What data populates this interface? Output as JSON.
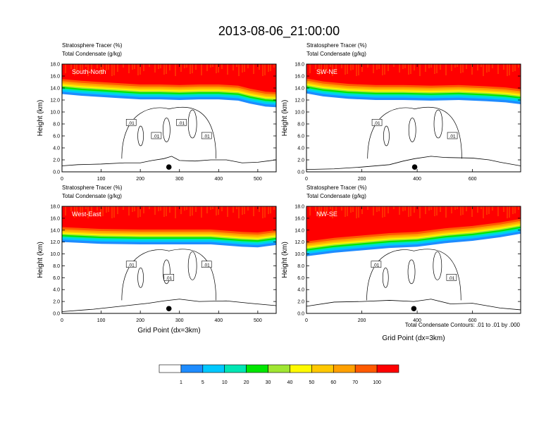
{
  "title": "2013-08-06_21:00:00",
  "footnote": "Total Condensate Contours: .01 to .01 by .000",
  "colorbar": {
    "colors": [
      "#ffffff",
      "#1e8cff",
      "#00c8ff",
      "#00e6b4",
      "#00e600",
      "#a0e632",
      "#fffa00",
      "#ffc800",
      "#ffa000",
      "#ff5a00",
      "#ff0000"
    ],
    "labels": [
      "1",
      "5",
      "10",
      "20",
      "30",
      "40",
      "50",
      "60",
      "70",
      "100"
    ]
  },
  "panels": [
    {
      "label": "South-North",
      "subtitle1": "Stratosphere Tracer   (%)",
      "subtitle2": "Total Condensate   (g/kg)",
      "ylabel": "Height (km)",
      "xlabel": "",
      "xmax": 547,
      "yticks": [
        "0.0",
        "2.0",
        "4.0",
        "6.0",
        "8.0",
        "10.0",
        "12.0",
        "14.0",
        "16.0",
        "18.0"
      ],
      "xticks": [
        "0",
        "100",
        "200",
        "300",
        "400",
        "500"
      ],
      "xtick_values": [
        0,
        100,
        200,
        300,
        400,
        500
      ],
      "marker_x": 273,
      "contour_labels": [
        ".01",
        ".01",
        ".01",
        ".01"
      ],
      "tropopause": [
        [
          0,
          14.4
        ],
        [
          50,
          14.1
        ],
        [
          100,
          13.9
        ],
        [
          150,
          13.7
        ],
        [
          200,
          13.5
        ],
        [
          250,
          13.5
        ],
        [
          300,
          13.4
        ],
        [
          350,
          13.5
        ],
        [
          400,
          13.5
        ],
        [
          450,
          13.3
        ],
        [
          480,
          12.8
        ],
        [
          520,
          12.3
        ],
        [
          547,
          12.2
        ]
      ],
      "terrain": [
        [
          0,
          1.0
        ],
        [
          40,
          1.2
        ],
        [
          100,
          1.3
        ],
        [
          160,
          1.5
        ],
        [
          200,
          1.5
        ],
        [
          230,
          1.9
        ],
        [
          260,
          2.2
        ],
        [
          280,
          2.6
        ],
        [
          300,
          1.9
        ],
        [
          340,
          1.8
        ],
        [
          380,
          2.0
        ],
        [
          420,
          2.0
        ],
        [
          460,
          1.5
        ],
        [
          500,
          1.6
        ],
        [
          547,
          2.0
        ]
      ]
    },
    {
      "label": "SW-NE",
      "subtitle1": "Stratosphere Tracer   (%)",
      "subtitle2": "Total Condensate   (g/kg)",
      "ylabel": "Height (km)",
      "xlabel": "",
      "xmax": 774,
      "yticks": [
        "0.0",
        "2.0",
        "4.0",
        "6.0",
        "8.0",
        "10.0",
        "12.0",
        "14.0",
        "16.0",
        "18.0"
      ],
      "xticks": [
        "0",
        "200",
        "400",
        "600"
      ],
      "xtick_values": [
        0,
        200,
        400,
        600
      ],
      "marker_x": 391,
      "contour_labels": [
        ".01",
        ".01"
      ],
      "tropopause": [
        [
          0,
          14.5
        ],
        [
          60,
          14.0
        ],
        [
          150,
          13.6
        ],
        [
          250,
          13.4
        ],
        [
          350,
          13.4
        ],
        [
          450,
          13.3
        ],
        [
          550,
          13.4
        ],
        [
          650,
          13.2
        ],
        [
          720,
          13.0
        ],
        [
          774,
          12.7
        ]
      ],
      "terrain": [
        [
          0,
          0.4
        ],
        [
          100,
          0.5
        ],
        [
          200,
          0.8
        ],
        [
          300,
          1.2
        ],
        [
          350,
          1.8
        ],
        [
          391,
          2.2
        ],
        [
          450,
          2.6
        ],
        [
          500,
          2.4
        ],
        [
          600,
          2.3
        ],
        [
          660,
          2.0
        ],
        [
          700,
          1.6
        ],
        [
          774,
          1.0
        ]
      ]
    },
    {
      "label": "West-East",
      "subtitle1": "Stratosphere Tracer   (%)",
      "subtitle2": "Total Condensate   (g/kg)",
      "ylabel": "Height (km)",
      "xlabel": "Grid Point (dx=3km)",
      "xmax": 547,
      "yticks": [
        "0.0",
        "2.0",
        "4.0",
        "6.0",
        "8.0",
        "10.0",
        "12.0",
        "14.0",
        "16.0",
        "18.0"
      ],
      "xticks": [
        "0",
        "100",
        "200",
        "300",
        "400",
        "500"
      ],
      "xtick_values": [
        0,
        100,
        200,
        300,
        400,
        500
      ],
      "marker_x": 273,
      "contour_labels": [
        ".01",
        ".01",
        ".01"
      ],
      "tropopause": [
        [
          0,
          13.4
        ],
        [
          100,
          13.1
        ],
        [
          200,
          13.0
        ],
        [
          300,
          13.0
        ],
        [
          380,
          13.0
        ],
        [
          460,
          12.6
        ],
        [
          500,
          12.5
        ],
        [
          547,
          12.9
        ]
      ],
      "terrain": [
        [
          0,
          0.3
        ],
        [
          80,
          0.7
        ],
        [
          150,
          1.2
        ],
        [
          220,
          1.7
        ],
        [
          260,
          2.1
        ],
        [
          300,
          2.4
        ],
        [
          350,
          2.0
        ],
        [
          420,
          2.1
        ],
        [
          480,
          1.7
        ],
        [
          547,
          1.3
        ]
      ]
    },
    {
      "label": "NW-SE",
      "subtitle1": "Stratosphere Tracer   (%)",
      "subtitle2": "Total Condensate   (g/kg)",
      "ylabel": "Height (km)",
      "xlabel": "Grid Point (dx=3km)",
      "xmax": 774,
      "yticks": [
        "0.0",
        "2.0",
        "4.0",
        "6.0",
        "8.0",
        "10.0",
        "12.0",
        "14.0",
        "16.0",
        "18.0"
      ],
      "xticks": [
        "0",
        "200",
        "400",
        "600"
      ],
      "xtick_values": [
        0,
        200,
        400,
        600
      ],
      "marker_x": 388,
      "contour_labels": [
        ".01",
        ".01"
      ],
      "tropopause": [
        [
          0,
          11.0
        ],
        [
          100,
          11.6
        ],
        [
          200,
          12.0
        ],
        [
          300,
          12.4
        ],
        [
          400,
          12.6
        ],
        [
          500,
          13.2
        ],
        [
          600,
          13.6
        ],
        [
          700,
          14.2
        ],
        [
          774,
          14.8
        ]
      ],
      "terrain": [
        [
          0,
          1.2
        ],
        [
          100,
          1.9
        ],
        [
          200,
          2.0
        ],
        [
          300,
          2.2
        ],
        [
          388,
          2.0
        ],
        [
          450,
          2.4
        ],
        [
          520,
          1.6
        ],
        [
          600,
          1.7
        ],
        [
          700,
          0.9
        ],
        [
          774,
          0.6
        ]
      ]
    }
  ],
  "chart_data": {
    "type": "heatmap",
    "title": "2013-08-06_21:00:00",
    "variable_filled": "Stratosphere Tracer (%)",
    "variable_contour": "Total Condensate (g/kg)",
    "contour_levels": [
      0.01
    ],
    "levels": [
      1,
      5,
      10,
      20,
      30,
      40,
      50,
      60,
      70,
      100
    ],
    "ylim": [
      0,
      18
    ],
    "ylabel": "Height (km)",
    "xlabel": "Grid Point (dx=3km)",
    "panels": [
      "South-North",
      "SW-NE",
      "West-East",
      "NW-SE"
    ]
  }
}
